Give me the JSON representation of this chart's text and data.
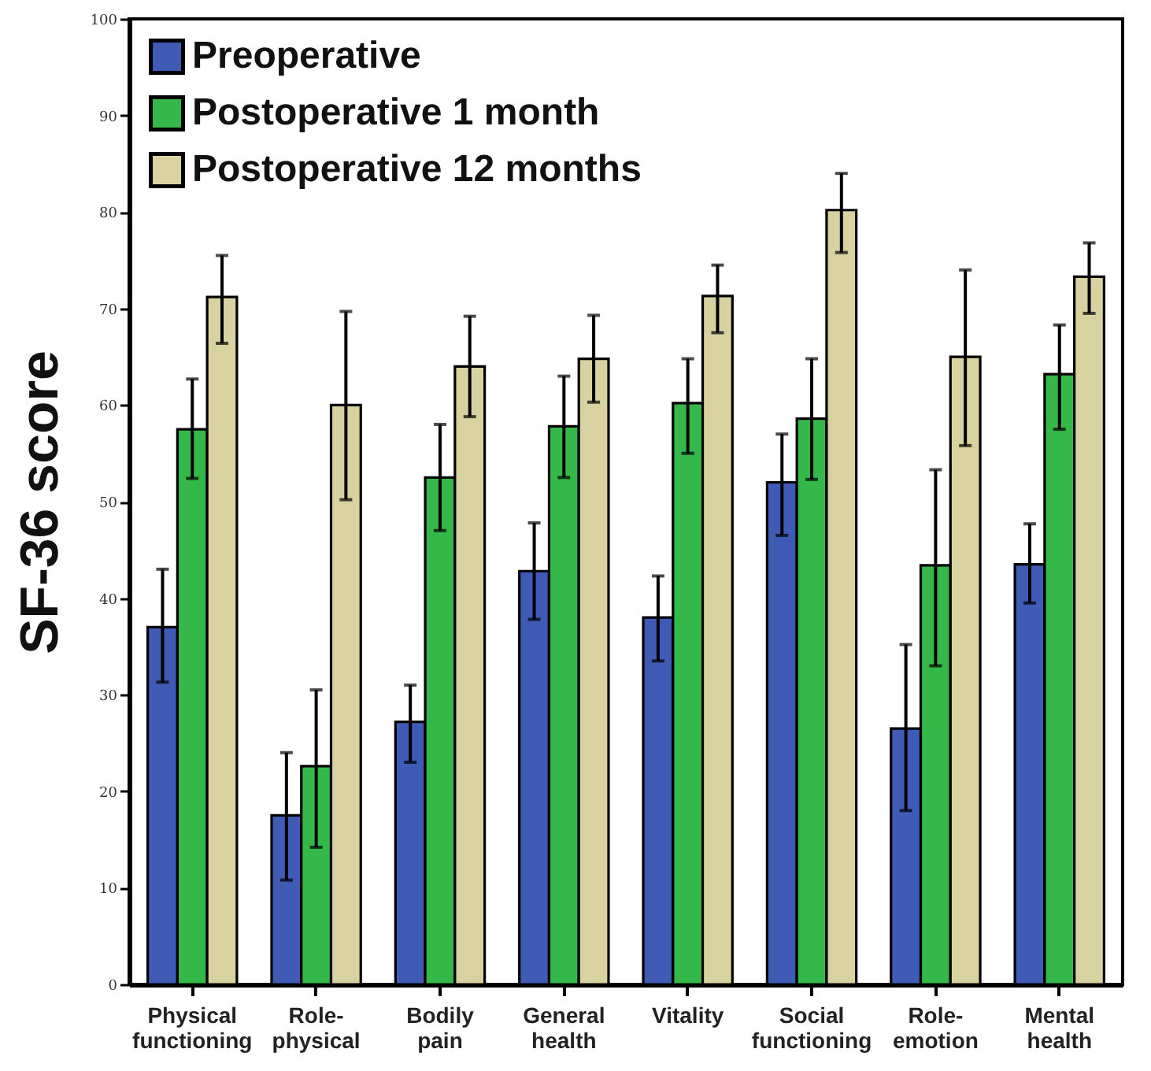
{
  "chart_data": {
    "type": "bar",
    "ylabel": "SF-36 score",
    "categories": [
      "Physical functioning",
      "Role-physical",
      "Bodily pain",
      "General health",
      "Vitality",
      "Social functioning",
      "Role-emotion",
      "Mental health"
    ],
    "series": [
      {
        "name": "Preoperative",
        "color": "#3f5bb5",
        "values": [
          37,
          17.5,
          27.2,
          42.8,
          38,
          52,
          26.5,
          43.5
        ],
        "errors": [
          [
            31.3,
            43
          ],
          [
            10.8,
            24
          ],
          [
            23,
            31
          ],
          [
            37.8,
            47.8
          ],
          [
            33.5,
            42.3
          ],
          [
            46.5,
            57
          ],
          [
            18,
            35.2
          ],
          [
            39.5,
            47.7
          ]
        ]
      },
      {
        "name": "Postoperative 1 month",
        "color": "#35b84a",
        "values": [
          57.5,
          22.6,
          52.5,
          57.8,
          60.2,
          58.6,
          43.4,
          63.2
        ],
        "errors": [
          [
            52.4,
            62.7
          ],
          [
            14.2,
            30.5
          ],
          [
            47,
            58
          ],
          [
            52.5,
            63
          ],
          [
            55,
            64.8
          ],
          [
            52.3,
            64.8
          ],
          [
            33,
            53.3
          ],
          [
            57.5,
            68.3
          ]
        ]
      },
      {
        "name": "Postoperative 12 months",
        "color": "#d8d1a0",
        "values": [
          71.2,
          60,
          64,
          64.8,
          71.3,
          80.2,
          65,
          73.3
        ],
        "errors": [
          [
            66.4,
            75.5
          ],
          [
            50.2,
            69.7
          ],
          [
            58.8,
            69.2
          ],
          [
            60.3,
            69.3
          ],
          [
            67.5,
            74.5
          ],
          [
            75.8,
            84
          ],
          [
            55.8,
            74
          ],
          [
            69.5,
            76.8
          ]
        ]
      }
    ],
    "ylim": [
      0,
      100
    ],
    "yticks": [
      0,
      10,
      20,
      30,
      40,
      50,
      60,
      70,
      80,
      90,
      100
    ],
    "grid": false,
    "legend": "top left"
  }
}
